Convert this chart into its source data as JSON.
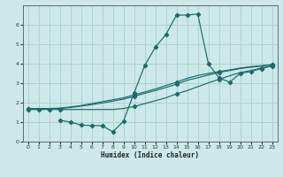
{
  "xlabel": "Humidex (Indice chaleur)",
  "xlim": [
    -0.5,
    23.5
  ],
  "ylim": [
    0,
    7
  ],
  "xticks": [
    0,
    1,
    2,
    3,
    4,
    5,
    6,
    7,
    8,
    9,
    10,
    11,
    12,
    13,
    14,
    15,
    16,
    17,
    18,
    19,
    20,
    21,
    22,
    23
  ],
  "yticks": [
    0,
    1,
    2,
    3,
    4,
    5,
    6
  ],
  "bg_color": "#cce8e8",
  "grid_color": "#b0d0d0",
  "line_color": "#1a6b6b",
  "line1_x": [
    0,
    1,
    2,
    3,
    4,
    5,
    6,
    7,
    8,
    9,
    10,
    11,
    12,
    13,
    14,
    15,
    16,
    17,
    18,
    19,
    20,
    21,
    22,
    23
  ],
  "line1_y": [
    1.65,
    1.65,
    1.65,
    1.65,
    1.65,
    1.65,
    1.65,
    1.65,
    1.65,
    1.7,
    1.8,
    1.95,
    2.1,
    2.25,
    2.45,
    2.62,
    2.82,
    3.02,
    3.2,
    3.38,
    3.55,
    3.65,
    3.78,
    3.88
  ],
  "line2_x": [
    0,
    1,
    2,
    3,
    4,
    5,
    6,
    7,
    8,
    9,
    10,
    11,
    12,
    13,
    14,
    15,
    16,
    17,
    18,
    19,
    20,
    21,
    22,
    23
  ],
  "line2_y": [
    1.68,
    1.68,
    1.68,
    1.7,
    1.75,
    1.82,
    1.9,
    1.98,
    2.08,
    2.18,
    2.32,
    2.48,
    2.62,
    2.78,
    2.95,
    3.15,
    3.28,
    3.42,
    3.55,
    3.65,
    3.75,
    3.82,
    3.88,
    3.95
  ],
  "line3_x": [
    0,
    1,
    2,
    3,
    4,
    5,
    6,
    7,
    8,
    9,
    10,
    11,
    12,
    13,
    14,
    15,
    16,
    17,
    18,
    19,
    20,
    21,
    22,
    23
  ],
  "line3_y": [
    1.7,
    1.7,
    1.7,
    1.72,
    1.78,
    1.85,
    1.95,
    2.05,
    2.15,
    2.25,
    2.4,
    2.55,
    2.7,
    2.88,
    3.05,
    3.25,
    3.4,
    3.5,
    3.6,
    3.68,
    3.78,
    3.85,
    3.9,
    3.95
  ],
  "line4_x": [
    3,
    4,
    5,
    6,
    7,
    8,
    9,
    10,
    11,
    12,
    13,
    14,
    15,
    16,
    17,
    18,
    19,
    20,
    21,
    22,
    23
  ],
  "line4_y": [
    1.1,
    1.0,
    0.85,
    0.82,
    0.82,
    0.5,
    1.05,
    2.5,
    3.9,
    4.85,
    5.5,
    6.5,
    6.5,
    6.55,
    4.0,
    3.28,
    3.05,
    3.5,
    3.6,
    3.75,
    3.9
  ],
  "line1_markers_x": [
    0,
    1,
    2,
    3,
    10,
    14,
    18,
    22,
    23
  ],
  "line1_markers_y": [
    1.65,
    1.65,
    1.65,
    1.65,
    1.8,
    2.45,
    3.2,
    3.78,
    3.88
  ],
  "line2_markers_x": [
    0,
    10,
    14,
    18,
    23
  ],
  "line2_markers_y": [
    1.68,
    2.32,
    2.95,
    3.55,
    3.95
  ],
  "line3_markers_x": [
    0,
    10,
    14,
    18,
    23
  ],
  "line3_markers_y": [
    1.7,
    2.4,
    3.05,
    3.6,
    3.95
  ],
  "line4_markers_x": [
    3,
    4,
    5,
    6,
    7,
    8,
    9,
    10,
    11,
    12,
    13,
    14,
    15,
    16,
    17,
    18,
    19,
    20,
    21,
    22,
    23
  ],
  "line4_markers_y": [
    1.1,
    1.0,
    0.85,
    0.82,
    0.82,
    0.5,
    1.05,
    2.5,
    3.9,
    4.85,
    5.5,
    6.5,
    6.5,
    6.55,
    4.0,
    3.28,
    3.05,
    3.5,
    3.6,
    3.75,
    3.9
  ]
}
